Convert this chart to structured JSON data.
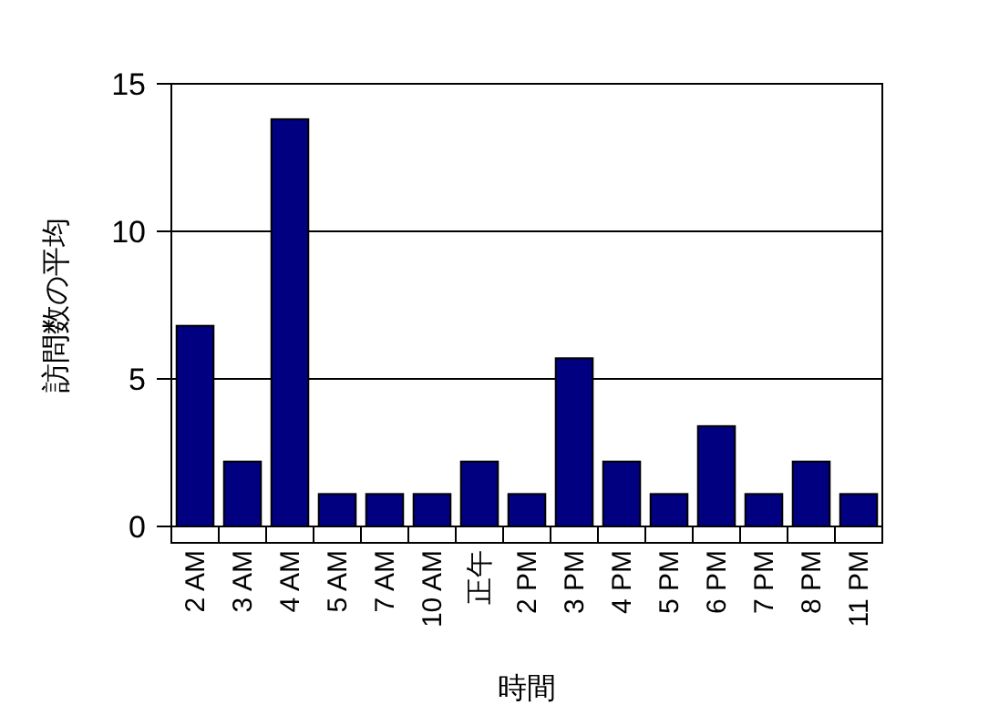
{
  "chart_data": {
    "type": "bar",
    "xlabel": "時間",
    "ylabel": "訪問数の平均",
    "categories": [
      "2 AM",
      "3 AM",
      "4 AM",
      "5 AM",
      "7 AM",
      "10 AM",
      "正午",
      "2 PM",
      "3 PM",
      "4 PM",
      "5 PM",
      "6 PM",
      "7 PM",
      "8 PM",
      "11 PM"
    ],
    "values": [
      6.8,
      2.2,
      13.8,
      1.1,
      1.1,
      1.1,
      2.2,
      1.1,
      5.7,
      2.2,
      1.1,
      3.4,
      1.1,
      2.2,
      1.1
    ],
    "color": "#000080",
    "ylim": [
      0,
      15
    ],
    "yticks": [
      0,
      5,
      10,
      15
    ],
    "grid": "y"
  }
}
